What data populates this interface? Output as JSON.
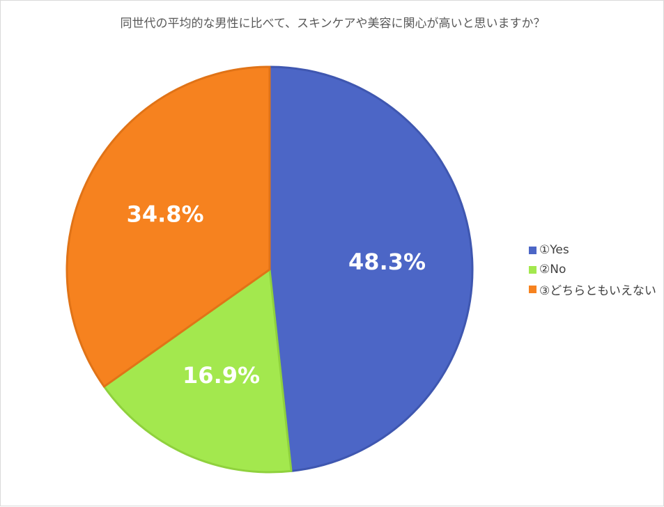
{
  "chart_data": {
    "type": "pie",
    "title": "同世代の平均的な男性に比べて、スキンケアや美容に関心が高いと思いますか？",
    "legend_position": "right",
    "slices": [
      {
        "name": "①Yes",
        "value": 48.3,
        "label": "48.3%",
        "color": "#4c66c6"
      },
      {
        "name": "②No",
        "value": 16.9,
        "label": "16.9%",
        "color": "#a3e84e"
      },
      {
        "name": "③どちらともいえない",
        "value": 34.8,
        "label": "34.8%",
        "color": "#f6821f"
      }
    ]
  }
}
